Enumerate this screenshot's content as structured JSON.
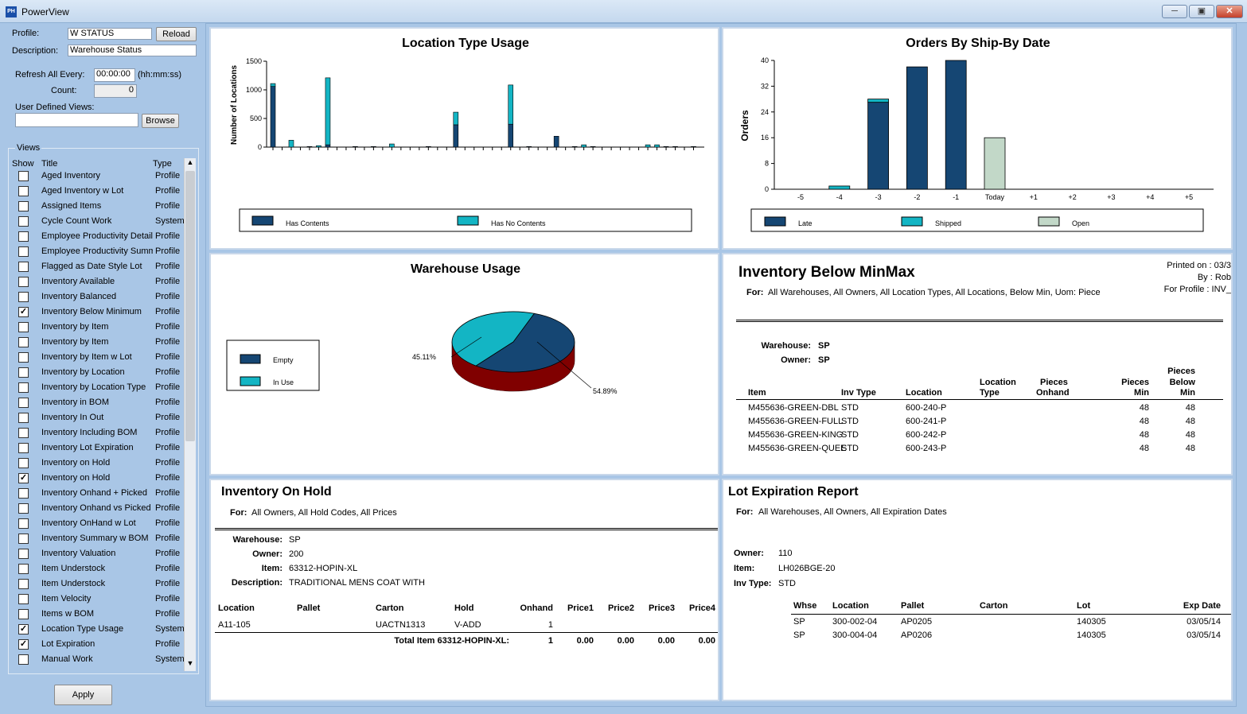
{
  "window": {
    "title": "PowerView",
    "icon_text": "PH",
    "minimize_icon": "minimize-icon",
    "maximize_icon": "maximize-icon",
    "close_icon": "close-icon"
  },
  "left": {
    "profile_label": "Profile:",
    "profile_value": "W STATUS",
    "reload": "Reload",
    "description_label": "Description:",
    "description_value": "Warehouse Status",
    "refresh_label": "Refresh All Every:",
    "refresh_value": "00:00:00",
    "refresh_unit": "(hh:mm:ss)",
    "count_label": "Count:",
    "count_value": "0",
    "udv_label": "User Defined Views:",
    "udv_value": "",
    "browse": "Browse",
    "views_label": "Views",
    "col_show": "Show",
    "col_title": "Title",
    "col_type": "Type",
    "views": [
      {
        "title": "Aged Inventory",
        "type": "Profile",
        "checked": false
      },
      {
        "title": "Aged Inventory w Lot",
        "type": "Profile",
        "checked": false
      },
      {
        "title": "Assigned Items",
        "type": "Profile",
        "checked": false
      },
      {
        "title": "Cycle Count Work",
        "type": "System",
        "checked": false
      },
      {
        "title": "Employee Productivity Detail",
        "type": "Profile",
        "checked": false
      },
      {
        "title": "Employee Productivity Summa",
        "type": "Profile",
        "checked": false
      },
      {
        "title": "Flagged as Date Style Lot",
        "type": "Profile",
        "checked": false
      },
      {
        "title": "Inventory Available",
        "type": "Profile",
        "checked": false
      },
      {
        "title": "Inventory Balanced",
        "type": "Profile",
        "checked": false
      },
      {
        "title": "Inventory Below Minimum",
        "type": "Profile",
        "checked": true
      },
      {
        "title": "Inventory by Item",
        "type": "Profile",
        "checked": false
      },
      {
        "title": "Inventory by Item",
        "type": "Profile",
        "checked": false
      },
      {
        "title": "Inventory by Item w Lot",
        "type": "Profile",
        "checked": false
      },
      {
        "title": "Inventory by Location",
        "type": "Profile",
        "checked": false
      },
      {
        "title": "Inventory by Location Type",
        "type": "Profile",
        "checked": false
      },
      {
        "title": "Inventory in BOM",
        "type": "Profile",
        "checked": false
      },
      {
        "title": "Inventory In Out",
        "type": "Profile",
        "checked": false
      },
      {
        "title": "Inventory Including BOM",
        "type": "Profile",
        "checked": false
      },
      {
        "title": "Inventory Lot Expiration",
        "type": "Profile",
        "checked": false
      },
      {
        "title": "Inventory on Hold",
        "type": "Profile",
        "checked": false
      },
      {
        "title": "Inventory on Hold",
        "type": "Profile",
        "checked": true
      },
      {
        "title": "Inventory Onhand + Picked",
        "type": "Profile",
        "checked": false
      },
      {
        "title": "Inventory Onhand vs Picked",
        "type": "Profile",
        "checked": false
      },
      {
        "title": "Inventory OnHand w Lot",
        "type": "Profile",
        "checked": false
      },
      {
        "title": "Inventory Summary w BOM",
        "type": "Profile",
        "checked": false
      },
      {
        "title": "Inventory Valuation",
        "type": "Profile",
        "checked": false
      },
      {
        "title": "Item Understock",
        "type": "Profile",
        "checked": false
      },
      {
        "title": "Item Understock",
        "type": "Profile",
        "checked": false
      },
      {
        "title": "Item Velocity",
        "type": "Profile",
        "checked": false
      },
      {
        "title": "Items w BOM",
        "type": "Profile",
        "checked": false
      },
      {
        "title": "Location Type Usage",
        "type": "System",
        "checked": true
      },
      {
        "title": "Lot Expiration",
        "type": "Profile",
        "checked": true
      },
      {
        "title": "Manual Work",
        "type": "System",
        "checked": false
      }
    ],
    "apply": "Apply"
  },
  "colors": {
    "dark": "#154673",
    "teal": "#13b5c4",
    "open": "#c2d8c8",
    "pie_side": "#800000"
  },
  "chart_data": [
    {
      "type": "bar",
      "stacked": true,
      "title": "Location Type Usage",
      "xlabel": "",
      "ylabel": "Number of Locations",
      "ylim": [
        0,
        1500
      ],
      "yticks": [
        0,
        500,
        1000,
        1500
      ],
      "legend": "bottom",
      "series": [
        {
          "name": "Has Contents",
          "values": [
            1060,
            0,
            0,
            0,
            10,
            0,
            40,
            0,
            0,
            10,
            0,
            10,
            0,
            0,
            0,
            0,
            0,
            10,
            0,
            0,
            390,
            0,
            0,
            0,
            0,
            0,
            400,
            0,
            10,
            0,
            0,
            190,
            0,
            10,
            0,
            10,
            0,
            0,
            0,
            0,
            0,
            0,
            0,
            10,
            10,
            0,
            10
          ]
        },
        {
          "name": "Has No Contents",
          "values": [
            50,
            0,
            120,
            0,
            0,
            25,
            1170,
            0,
            0,
            0,
            0,
            0,
            0,
            55,
            0,
            0,
            0,
            0,
            0,
            0,
            220,
            0,
            0,
            0,
            0,
            0,
            685,
            0,
            0,
            0,
            0,
            0,
            0,
            0,
            40,
            0,
            0,
            0,
            0,
            0,
            0,
            40,
            40,
            0,
            0,
            0,
            0
          ]
        }
      ]
    },
    {
      "type": "bar",
      "stacked": true,
      "title": "Orders By Ship-By Date",
      "xlabel": "",
      "ylabel": "Orders",
      "ylim": [
        0,
        40
      ],
      "yticks": [
        0,
        8,
        16,
        24,
        32,
        40
      ],
      "legend": "bottom",
      "categories": [
        "-5",
        "-4",
        "-3",
        "-2",
        "-1",
        "Today",
        "+1",
        "+2",
        "+3",
        "+4",
        "+5"
      ],
      "series": [
        {
          "name": "Late",
          "values": [
            0,
            0,
            27,
            38,
            40,
            0,
            0,
            0,
            0,
            0,
            0
          ]
        },
        {
          "name": "Shipped",
          "values": [
            0,
            1,
            1,
            0,
            0,
            0,
            0,
            0,
            0,
            0,
            0
          ]
        },
        {
          "name": "Open",
          "values": [
            0,
            0,
            0,
            0,
            0,
            16,
            0,
            0,
            0,
            0,
            0
          ]
        }
      ]
    },
    {
      "type": "pie",
      "title": "Warehouse Usage",
      "legend": "left",
      "slices": [
        {
          "name": "Empty",
          "value": 54.89,
          "label": "54.89%"
        },
        {
          "name": "In Use",
          "value": 45.11,
          "label": "45.11%"
        }
      ]
    }
  ],
  "below_minmax": {
    "title": "Inventory Below MinMax",
    "printed_on": "Printed on : 03/3",
    "by": "By : Rob",
    "for_profile": "For Profile : INV_",
    "for_label": "For:",
    "for_value": "All Warehouses, All Owners, All Location Types, All Locations, Below Min, Uom: Piece",
    "warehouse_label": "Warehouse:",
    "warehouse": "SP",
    "owner_label": "Owner:",
    "owner": "SP",
    "headers": {
      "item": "Item",
      "inv_type": "Inv Type",
      "location": "Location",
      "loc_type_1": "Location",
      "loc_type_2": "Type",
      "onhand_1": "Pieces",
      "onhand_2": "Onhand",
      "min_1": "Pieces",
      "min_2": "Min",
      "below_1": "Pieces",
      "below_2": "Below",
      "below_3": "Min"
    },
    "rows": [
      {
        "item": "M455636-GREEN-DBL",
        "inv_type": "STD",
        "location": "600-240-P",
        "min": "48",
        "below": "48"
      },
      {
        "item": "M455636-GREEN-FULL",
        "inv_type": "STD",
        "location": "600-241-P",
        "min": "48",
        "below": "48"
      },
      {
        "item": "M455636-GREEN-KING",
        "inv_type": "STD",
        "location": "600-242-P",
        "min": "48",
        "below": "48"
      },
      {
        "item": "M455636-GREEN-QUEE",
        "inv_type": "STD",
        "location": "600-243-P",
        "min": "48",
        "below": "48"
      }
    ]
  },
  "on_hold": {
    "title": "Inventory On Hold",
    "for_label": "For:",
    "for_value": "All Owners, All Hold Codes, All Prices",
    "warehouse_label": "Warehouse:",
    "warehouse": "SP",
    "owner_label": "Owner:",
    "owner": "200",
    "item_label": "Item:",
    "item": "63312-HOPIN-XL",
    "desc_label": "Description:",
    "desc": "TRADITIONAL MENS COAT WITH",
    "headers": [
      "Location",
      "Pallet",
      "Carton",
      "Hold",
      "Onhand",
      "Price1",
      "Price2",
      "Price3",
      "Price4"
    ],
    "row": [
      "A11-105",
      "",
      "UACTN1313",
      "V-ADD",
      "1",
      "",
      "",
      "",
      ""
    ],
    "total_label": "Total Item 63312-HOPIN-XL:",
    "total": [
      "1",
      "0.00",
      "0.00",
      "0.00",
      "0.00"
    ]
  },
  "lot_exp": {
    "title": "Lot Expiration Report",
    "for_label": "For:",
    "for_value": "All Warehouses, All Owners, All Expiration Dates",
    "owner_label": "Owner:",
    "owner": "110",
    "item_label": "Item:",
    "item": "LH026BGE-20",
    "invtype_label": "Inv Type:",
    "invtype": "STD",
    "headers": [
      "Whse",
      "Location",
      "Pallet",
      "Carton",
      "Lot",
      "Exp Date"
    ],
    "rows": [
      [
        "SP",
        "300-002-04",
        "AP0205",
        "",
        "140305",
        "03/05/14"
      ],
      [
        "SP",
        "300-004-04",
        "AP0206",
        "",
        "140305",
        "03/05/14"
      ]
    ]
  }
}
